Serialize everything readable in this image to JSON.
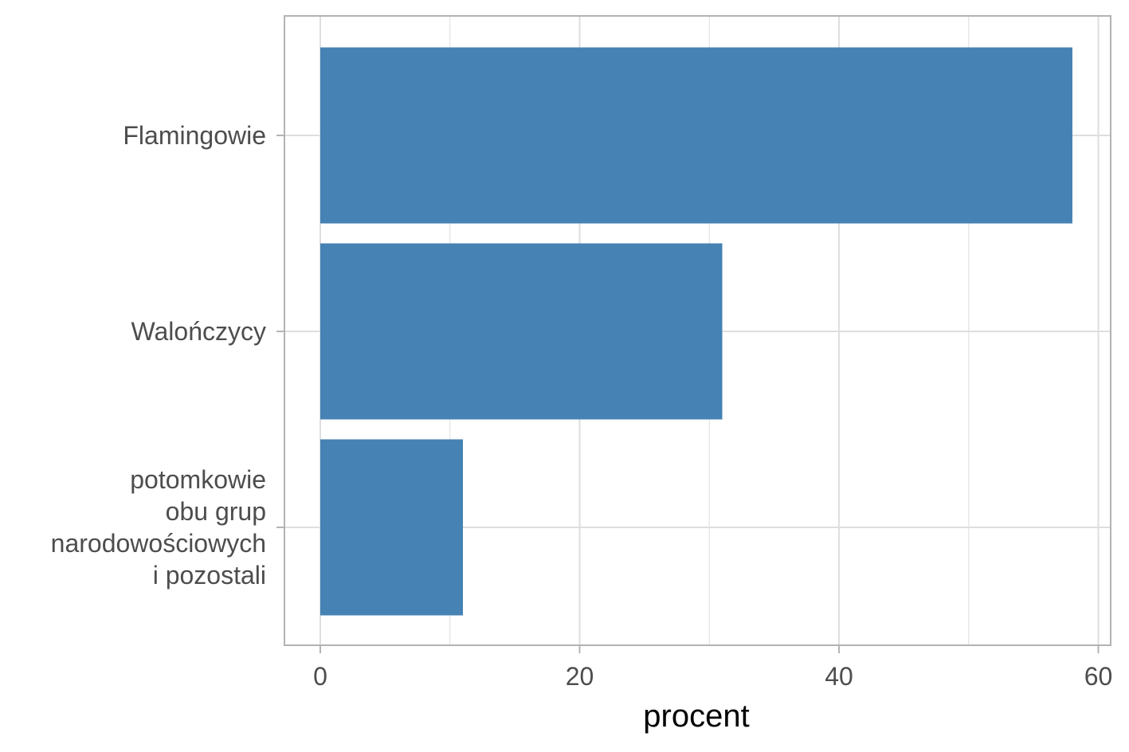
{
  "chart_data": {
    "type": "bar",
    "orientation": "horizontal",
    "categories": [
      [
        "Flamingowie"
      ],
      [
        "Walończycy"
      ],
      [
        "potomkowie",
        "obu grup",
        "narodowościowych",
        "i pozostali"
      ]
    ],
    "values": [
      58,
      31,
      11
    ],
    "xlabel": "procent",
    "ylabel": "",
    "xlim": [
      0,
      60
    ],
    "xticks": [
      0,
      20,
      40,
      60
    ],
    "grid": true,
    "bar_color": "#4682b4",
    "grid_color": "#dedede",
    "panel_border_color": "#b3b3b3"
  }
}
